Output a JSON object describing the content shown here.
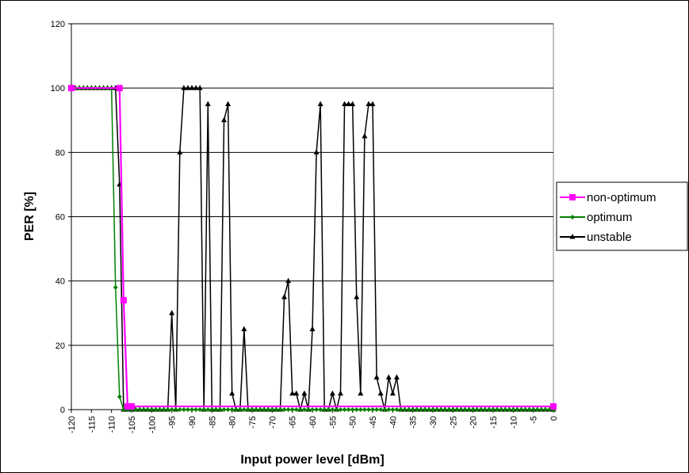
{
  "chart_data": {
    "type": "line",
    "xlabel": "Input power level [dBm]",
    "ylabel": "PER [%]",
    "xlim": [
      -120,
      0
    ],
    "ylim": [
      0,
      120
    ],
    "y_ticks": [
      0,
      20,
      40,
      60,
      80,
      100,
      120
    ],
    "x_tick_step": 5,
    "grid": "horizontal",
    "legend_position": "right",
    "series": [
      {
        "name": "non-optimum",
        "color": "#ff00ff",
        "marker": "square",
        "x": [
          -120,
          -108,
          -107,
          -106,
          -105,
          0
        ],
        "y": [
          100,
          100,
          34,
          1,
          1,
          1
        ]
      },
      {
        "name": "optimum",
        "color": "#008000",
        "marker": "diamond",
        "x": [
          -120,
          -119,
          -118,
          -117,
          -116,
          -115,
          -114,
          -113,
          -112,
          -111,
          -110,
          -109,
          -108,
          -107,
          -106,
          -105,
          -104,
          -103,
          -102,
          -101,
          -100,
          -99,
          -98,
          -97,
          -96,
          -95,
          -94,
          -93,
          -92,
          -91,
          -90,
          -89,
          -88,
          -87,
          -86,
          -85,
          -84,
          -83,
          -82,
          -81,
          -80,
          -79,
          -78,
          -77,
          -76,
          -75,
          -74,
          -73,
          -72,
          -71,
          -70,
          -69,
          -68,
          -67,
          -66,
          -65,
          -64,
          -63,
          -62,
          -61,
          -60,
          -59,
          -58,
          -57,
          -56,
          -55,
          -54,
          -53,
          -52,
          -51,
          -50,
          -49,
          -48,
          -47,
          -46,
          -45,
          -44,
          -43,
          -42,
          -41,
          -40,
          -39,
          -38,
          -37,
          -36,
          -35,
          -34,
          -33,
          -32,
          -31,
          -30,
          -29,
          -28,
          -27,
          -26,
          -25,
          -24,
          -23,
          -22,
          -21,
          -20,
          -19,
          -18,
          -17,
          -16,
          -15,
          -14,
          -13,
          -12,
          -11,
          -10,
          -9,
          -8,
          -7,
          -6,
          -5,
          -4,
          -3,
          -2,
          -1,
          0
        ],
        "y": [
          100,
          100,
          100,
          100,
          100,
          100,
          100,
          100,
          100,
          100,
          100,
          38,
          4,
          0,
          0,
          0,
          0,
          0,
          0,
          0,
          0,
          0,
          0,
          0,
          0,
          0,
          0,
          0,
          0,
          0,
          0,
          0,
          0,
          0,
          0,
          0,
          0,
          0,
          0,
          0,
          0,
          0,
          0,
          0,
          0,
          0,
          0,
          0,
          0,
          0,
          0,
          0,
          0,
          0,
          0,
          0,
          0,
          0,
          0,
          0,
          0,
          0,
          0,
          0,
          0,
          0,
          0,
          0,
          0,
          0,
          0,
          0,
          0,
          0,
          0,
          0,
          0,
          0,
          0,
          0,
          0,
          0,
          0,
          0,
          0,
          0,
          0,
          0,
          0,
          0,
          0,
          0,
          0,
          0,
          0,
          0,
          0,
          0,
          0,
          0,
          0,
          0,
          0,
          0,
          0,
          0,
          0,
          0,
          0,
          0,
          0,
          0,
          0,
          0,
          0,
          0,
          0,
          0,
          0,
          0,
          0
        ]
      },
      {
        "name": "unstable",
        "color": "#000000",
        "marker": "triangle",
        "x": [
          -120,
          -119,
          -118,
          -117,
          -116,
          -115,
          -114,
          -113,
          -112,
          -111,
          -110,
          -109,
          -108,
          -107,
          -106,
          -105,
          -104,
          -103,
          -102,
          -101,
          -100,
          -99,
          -98,
          -97,
          -96,
          -95,
          -94,
          -93,
          -92,
          -91,
          -90,
          -89,
          -88,
          -87,
          -86,
          -85,
          -84,
          -83,
          -82,
          -81,
          -80,
          -79,
          -78,
          -77,
          -76,
          -75,
          -74,
          -73,
          -72,
          -71,
          -70,
          -69,
          -68,
          -67,
          -66,
          -65,
          -64,
          -63,
          -62,
          -61,
          -60,
          -59,
          -58,
          -57,
          -56,
          -55,
          -54,
          -53,
          -52,
          -51,
          -50,
          -49,
          -48,
          -47,
          -46,
          -45,
          -44,
          -43,
          -42,
          -41,
          -40,
          -39,
          -38,
          -37,
          -36,
          -35,
          -34,
          -33,
          -32,
          -31,
          -30,
          -29,
          -28,
          -27,
          -26,
          -25,
          -24,
          -23,
          -22,
          -21,
          -20,
          -19,
          -18,
          -17,
          -16,
          -15,
          -14,
          -13,
          -12,
          -11,
          -10,
          -9,
          -8,
          -7,
          -6,
          -5,
          -4,
          -3,
          -2,
          -1,
          0
        ],
        "y": [
          100,
          100,
          100,
          100,
          100,
          100,
          100,
          100,
          100,
          100,
          100,
          100,
          70,
          0,
          0,
          0,
          0,
          0,
          0,
          0,
          0,
          0,
          0,
          0,
          0,
          30,
          0,
          80,
          100,
          100,
          100,
          100,
          100,
          0,
          95,
          0,
          0,
          0,
          90,
          95,
          5,
          0,
          0,
          25,
          0,
          0,
          0,
          0,
          0,
          0,
          0,
          0,
          0,
          35,
          40,
          5,
          5,
          0,
          5,
          0,
          25,
          80,
          95,
          0,
          0,
          5,
          0,
          5,
          95,
          95,
          95,
          35,
          5,
          85,
          95,
          95,
          10,
          5,
          0,
          10,
          5,
          10,
          0,
          0,
          0,
          0,
          0,
          0,
          0,
          0,
          0,
          0,
          0,
          0,
          0,
          0,
          0,
          0,
          0,
          0,
          0,
          0,
          0,
          0,
          0,
          0,
          0,
          0,
          0,
          0,
          0,
          0,
          0,
          0,
          0,
          0,
          0,
          0,
          0,
          0,
          0
        ]
      }
    ]
  }
}
